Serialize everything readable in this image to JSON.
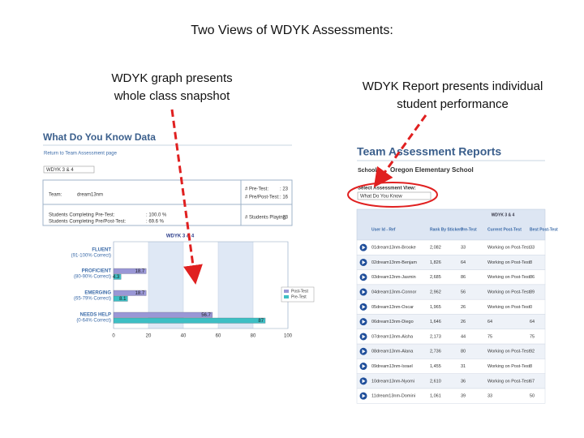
{
  "slide": {
    "title": "Two Views of WDYK Assessments:",
    "left_caption": [
      "WDYK graph presents",
      "whole class snapshot"
    ],
    "right_caption": [
      "WDYK Report presents individual",
      "student performance"
    ]
  },
  "left_panel": {
    "heading": "What Do You Know Data",
    "link": "Return to Team Assessment page",
    "selector": "WDYK 3 & 4",
    "info_left": [
      [
        "Team:",
        "dream13nm"
      ],
      [
        "Students Completing Pre-Test:",
        ": 100.0 %"
      ],
      [
        "Students Completing Pre/Post-Test:",
        ": 69.6 %"
      ]
    ],
    "info_right": [
      [
        "# Pre-Test:",
        ": 23"
      ],
      [
        "# Pre/Post-Test:",
        ": 16"
      ],
      [
        "# Students Playing:",
        ": 23"
      ]
    ],
    "chart": {
      "type": "bar",
      "title": "WDYK 3 & 4",
      "categories": [
        "FLUENT",
        "PROFICIENT",
        "EMERGING",
        "NEEDS HELP"
      ],
      "category_ranges": [
        "(91-100% Correct)",
        "(80-90% Correct)",
        "(65-79% Correct)",
        "(0-64% Correct)"
      ],
      "series": [
        {
          "name": "Post-Test",
          "color": "#9a97d6",
          "values": [
            null,
            18.7,
            18.7,
            56.7
          ]
        },
        {
          "name": "Pre-Test",
          "color": "#3dbfc4",
          "values": [
            null,
            4.3,
            8.1,
            87
          ]
        }
      ],
      "xlim": [
        0,
        100
      ],
      "xticks": [
        0,
        20,
        40,
        60,
        80,
        100
      ]
    }
  },
  "report": {
    "heading": "Team Assessment Reports",
    "school_label": "School:",
    "school": "Oregon Elementary School",
    "view_label": "Select Assessment View:",
    "view": "What Do You Know",
    "group_header": "WDYK 3 & 4",
    "columns": [
      "User Id - Ref",
      "Rank By Stickers",
      "Pre-Test",
      "Current Post-Test",
      "Best Post-Test"
    ],
    "rows": [
      [
        "01dream13nm-Brooke",
        "2,082",
        33,
        "Working on Post-Test",
        33
      ],
      [
        "02dream13nm-Benjam",
        "1,826",
        64,
        "Working on Post-Test",
        8
      ],
      [
        "03dream13nm-Jasmin",
        "2,685",
        86,
        "Working on Post-Test",
        86
      ],
      [
        "04dream13nm-Connor",
        "2,962",
        56,
        "Working on Post-Test",
        89
      ],
      [
        "05dream13nm-Oscar",
        "1,965",
        26,
        "Working on Post-Test",
        0
      ],
      [
        "06dream13nm-Diego",
        "1,646",
        26,
        64,
        64
      ],
      [
        "07dream13nm-Aisha",
        "2,173",
        44,
        75,
        75
      ],
      [
        "08dream13nm-Alana",
        "2,736",
        80,
        "Working on Post-Test",
        92
      ],
      [
        "09dream13nm-Israel",
        "1,455",
        31,
        "Working on Post-Test",
        8
      ],
      [
        "10dream13nm-Nyomi",
        "2,610",
        36,
        "Working on Post-Test",
        67
      ],
      [
        "11dream13nm-Domini",
        "1,061",
        39,
        33,
        50
      ]
    ]
  }
}
